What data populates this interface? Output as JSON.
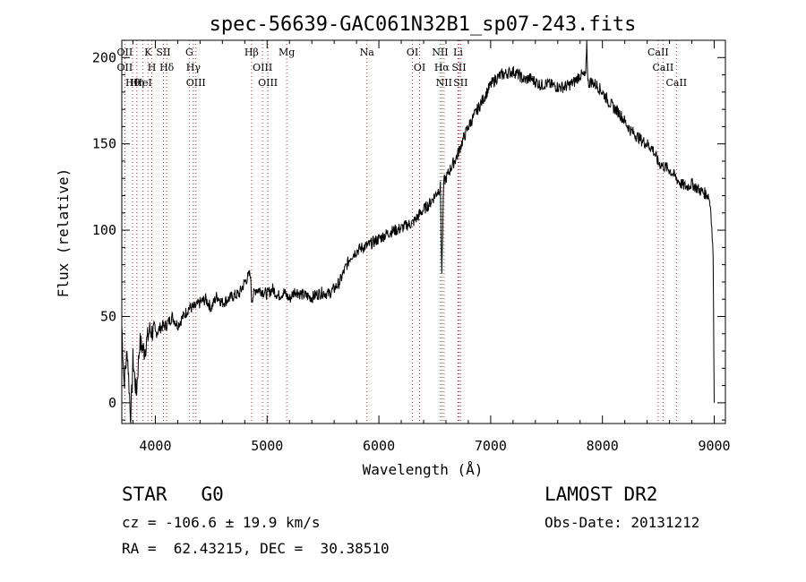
{
  "chart_data": {
    "type": "line",
    "title": "spec-56639-GAC061N32B1_sp07-243.fits",
    "xlabel": "Wavelength (Å)",
    "ylabel": "Flux (relative)",
    "xlim": [
      3700,
      9100
    ],
    "ylim": [
      -12,
      210
    ],
    "x_ticks": [
      4000,
      5000,
      6000,
      7000,
      8000,
      9000
    ],
    "y_ticks": [
      0,
      50,
      100,
      150,
      200
    ],
    "grid": false,
    "series": [
      {
        "x": [
          3700,
          3720,
          3750,
          3780,
          3800,
          3830,
          3860,
          3900,
          3950,
          4000,
          4050,
          4100,
          4150,
          4200,
          4250,
          4300,
          4350,
          4400,
          4450,
          4500,
          4550,
          4600,
          4650,
          4700,
          4750,
          4800,
          4850,
          4861,
          4900,
          4950,
          5000,
          5050,
          5100,
          5150,
          5200,
          5250,
          5300,
          5350,
          5400,
          5450,
          5500,
          5550,
          5600,
          5650,
          5700,
          5750,
          5800,
          5850,
          5900,
          5950,
          6000,
          6050,
          6100,
          6150,
          6200,
          6250,
          6300,
          6350,
          6400,
          6450,
          6500,
          6550,
          6563,
          6580,
          6600,
          6650,
          6700,
          6750,
          6800,
          6850,
          6900,
          6950,
          7000,
          7050,
          7100,
          7150,
          7200,
          7250,
          7300,
          7350,
          7400,
          7450,
          7500,
          7550,
          7600,
          7650,
          7700,
          7750,
          7800,
          7850,
          7860,
          7870,
          7900,
          7950,
          8000,
          8050,
          8100,
          8150,
          8200,
          8250,
          8300,
          8350,
          8400,
          8450,
          8500,
          8550,
          8600,
          8650,
          8700,
          8750,
          8800,
          8850,
          8900,
          8950,
          8970,
          8990,
          9000
        ],
        "y": [
          45,
          12,
          30,
          -10,
          25,
          5,
          35,
          30,
          42,
          40,
          44,
          45,
          50,
          45,
          50,
          55,
          55,
          58,
          60,
          55,
          62,
          58,
          60,
          62,
          63,
          70,
          75,
          60,
          66,
          65,
          63,
          66,
          62,
          64,
          60,
          65,
          63,
          62,
          61,
          63,
          64,
          63,
          66,
          70,
          78,
          85,
          88,
          90,
          91,
          93,
          95,
          97,
          99,
          100,
          101,
          103,
          104,
          108,
          112,
          115,
          120,
          125,
          75,
          128,
          130,
          137,
          143,
          152,
          160,
          166,
          172,
          178,
          184,
          188,
          190,
          191,
          192,
          190,
          187,
          188,
          186,
          184,
          185,
          184,
          183,
          183,
          184,
          186,
          190,
          189,
          210,
          185,
          186,
          184,
          180,
          175,
          171,
          168,
          163,
          158,
          155,
          152,
          150,
          147,
          139,
          137,
          135,
          131,
          127,
          125,
          127,
          124,
          122,
          120,
          112,
          85,
          0
        ]
      }
    ],
    "line_annotations": [
      {
        "wl": 3727,
        "labels": [
          "OII",
          "OII"
        ]
      },
      {
        "wl": 3797,
        "labels": [
          "Hθ"
        ]
      },
      {
        "wl": 3835,
        "labels": [
          "Hη"
        ]
      },
      {
        "wl": 3889,
        "labels": [
          "HeI"
        ]
      },
      {
        "wl": 3934,
        "labels": [
          "K"
        ]
      },
      {
        "wl": 3969,
        "labels": [
          "H"
        ]
      },
      {
        "wl": 4072,
        "labels": [
          "SII"
        ]
      },
      {
        "wl": 4102,
        "labels": [
          "Hδ"
        ]
      },
      {
        "wl": 4304,
        "labels": [
          "G"
        ]
      },
      {
        "wl": 4340,
        "labels": [
          "Hγ"
        ]
      },
      {
        "wl": 4363,
        "labels": [
          "OIII"
        ]
      },
      {
        "wl": 4861,
        "labels": [
          "Hβ"
        ]
      },
      {
        "wl": 4959,
        "labels": [
          "OIII"
        ]
      },
      {
        "wl": 5007,
        "labels": [
          "OIII"
        ]
      },
      {
        "wl": 5175,
        "labels": [
          "Mg"
        ]
      },
      {
        "wl": 5893,
        "labels": [
          "Na"
        ]
      },
      {
        "wl": 6300,
        "labels": [
          "OI"
        ]
      },
      {
        "wl": 6364,
        "labels": [
          "OI"
        ]
      },
      {
        "wl": 6548,
        "labels": [
          "NII"
        ]
      },
      {
        "wl": 6563,
        "labels": [
          "Hα"
        ]
      },
      {
        "wl": 6583,
        "labels": [
          "NII"
        ]
      },
      {
        "wl": 6708,
        "labels": [
          "Li"
        ]
      },
      {
        "wl": 6716,
        "labels": [
          "SII"
        ]
      },
      {
        "wl": 6731,
        "labels": [
          "SII"
        ]
      },
      {
        "wl": 8498,
        "labels": [
          "CaII"
        ]
      },
      {
        "wl": 8542,
        "labels": [
          "CaII"
        ]
      },
      {
        "wl": 8662,
        "labels": [
          "CaII"
        ]
      }
    ]
  },
  "info": {
    "class_label": "STAR",
    "subclass": "G0",
    "survey": "LAMOST DR2",
    "redshift": "cz = -106.6 ± 19.9 km/s",
    "obs_date": "Obs-Date: 20131212",
    "coords": "RA =  62.43215, DEC =  30.38510"
  }
}
